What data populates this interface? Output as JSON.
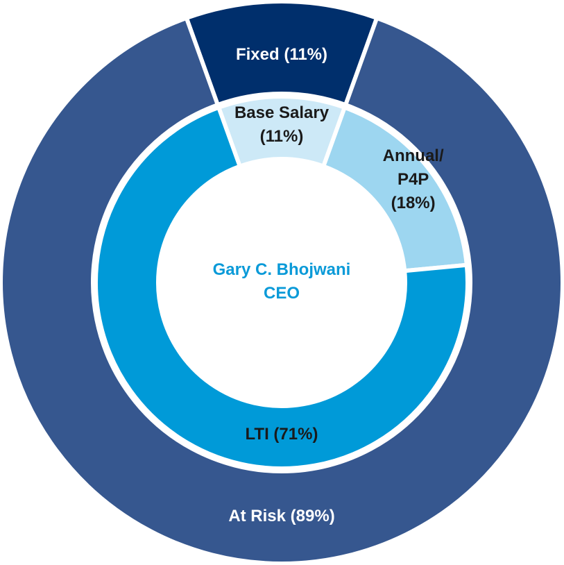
{
  "chart_data": {
    "type": "nested_donut",
    "center_label": "Gary C. Bhojwani\nCEO",
    "center_label_color": "#0a9ad8",
    "rings": [
      {
        "values": [
          11,
          89
        ],
        "value_labels": [
          "Fixed (11%)",
          "At Risk (89%)"
        ],
        "colors": [
          "#002f6c",
          "#36578f"
        ],
        "label_colors": [
          "#ffffff",
          "#ffffff"
        ]
      },
      {
        "values": [
          11,
          18,
          71
        ],
        "value_labels": [
          "Base Salary\n(11%)",
          "Annual/\nP4P\n(18%)",
          "LTI (71%)"
        ],
        "colors": [
          "#cde9f7",
          "#9dd6f0",
          "#009ad8"
        ],
        "label_colors": [
          "#1a1a1a",
          "#1a1a1a",
          "#1a1a1a"
        ]
      }
    ]
  }
}
